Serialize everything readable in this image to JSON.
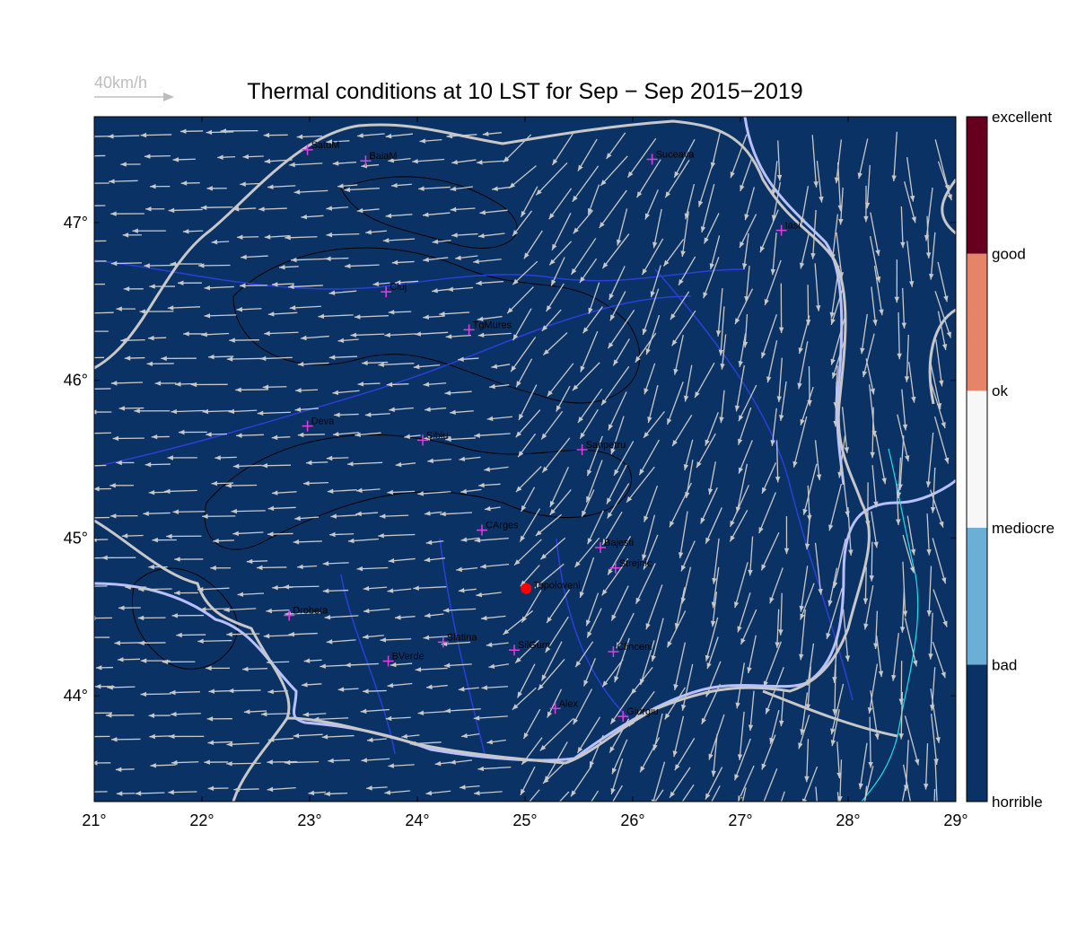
{
  "chart_data": {
    "type": "map",
    "title": "Thermal conditions at 10 LST for Sep − Sep  2015−2019",
    "reference_arrow_label": "40km/h",
    "background": "#0b3265",
    "xlim": [
      21,
      29
    ],
    "ylim": [
      43.33,
      47.67
    ],
    "xticks": [
      {
        "value": 21,
        "label": "21°"
      },
      {
        "value": 22,
        "label": "22°"
      },
      {
        "value": 23,
        "label": "23°"
      },
      {
        "value": 24,
        "label": "24°"
      },
      {
        "value": 25,
        "label": "25°"
      },
      {
        "value": 26,
        "label": "26°"
      },
      {
        "value": 27,
        "label": "27°"
      },
      {
        "value": 28,
        "label": "28°"
      },
      {
        "value": 29,
        "label": "29°"
      }
    ],
    "yticks": [
      {
        "value": 44,
        "label": "44°"
      },
      {
        "value": 45,
        "label": "45°"
      },
      {
        "value": 46,
        "label": "46°"
      },
      {
        "value": 47,
        "label": "47°"
      }
    ],
    "colorbar": {
      "labels": [
        "horrible",
        "bad",
        "mediocre",
        "ok",
        "good",
        "excellent"
      ],
      "colors": [
        "#0b3265",
        "#6baed6",
        "#f7f7f7",
        "#e6846a",
        "#67001f"
      ]
    },
    "sites": [
      {
        "name": "SatuM",
        "lon": 22.98,
        "lat": 47.46
      },
      {
        "name": "BaiaM",
        "lon": 23.52,
        "lat": 47.39
      },
      {
        "name": "Suceava",
        "lon": 26.18,
        "lat": 47.4
      },
      {
        "name": "Iasi",
        "lon": 27.38,
        "lat": 46.95
      },
      {
        "name": "Cluj",
        "lon": 23.71,
        "lat": 46.56
      },
      {
        "name": "TgMures",
        "lon": 24.48,
        "lat": 46.32
      },
      {
        "name": "Deva",
        "lon": 22.98,
        "lat": 45.71
      },
      {
        "name": "Sibiu",
        "lon": 24.05,
        "lat": 45.62
      },
      {
        "name": "Sanpetru",
        "lon": 25.53,
        "lat": 45.56
      },
      {
        "name": "CArges",
        "lon": 24.6,
        "lat": 45.05
      },
      {
        "name": "Bajesti",
        "lon": 25.7,
        "lat": 44.94
      },
      {
        "name": "Strejnic",
        "lon": 25.84,
        "lat": 44.81
      },
      {
        "name": "Drobeta",
        "lon": 22.81,
        "lat": 44.51
      },
      {
        "name": "Slatina",
        "lon": 24.24,
        "lat": 44.34
      },
      {
        "name": "SilGum",
        "lon": 24.9,
        "lat": 44.29
      },
      {
        "name": "BVerde",
        "lon": 23.73,
        "lat": 44.22
      },
      {
        "name": "Clinceni",
        "lon": 25.82,
        "lat": 44.28
      },
      {
        "name": "Alex",
        "lon": 25.28,
        "lat": 43.92
      },
      {
        "name": "Giurgiu",
        "lon": 25.91,
        "lat": 43.87
      }
    ],
    "highlight": {
      "name": "Topoloveni",
      "lon": 25.01,
      "lat": 44.68,
      "color": "#ff0000"
    }
  }
}
